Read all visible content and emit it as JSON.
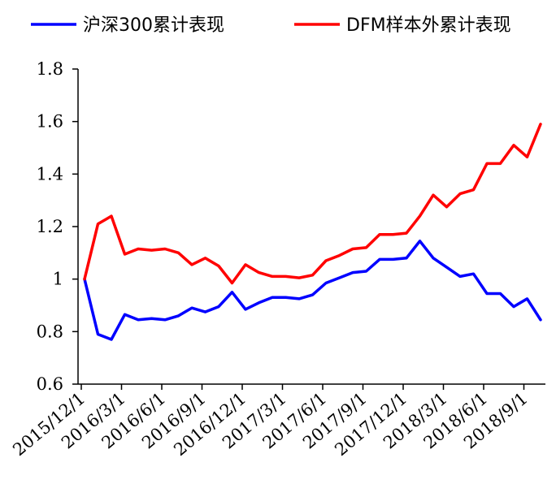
{
  "chart_data": {
    "type": "line",
    "x": [
      "2015/12/1",
      "2016/1/1",
      "2016/2/1",
      "2016/3/1",
      "2016/4/1",
      "2016/5/1",
      "2016/6/1",
      "2016/7/1",
      "2016/8/1",
      "2016/9/1",
      "2016/10/1",
      "2016/11/1",
      "2016/12/1",
      "2017/1/1",
      "2017/2/1",
      "2017/3/1",
      "2017/4/1",
      "2017/5/1",
      "2017/6/1",
      "2017/7/1",
      "2017/8/1",
      "2017/9/1",
      "2017/10/1",
      "2017/11/1",
      "2017/12/1",
      "2018/1/1",
      "2018/2/1",
      "2018/3/1",
      "2018/4/1",
      "2018/5/1",
      "2018/6/1",
      "2018/7/1",
      "2018/8/1",
      "2018/9/1",
      "2018/10/1"
    ],
    "x_tick_labels": [
      "2015/12/1",
      "2016/3/1",
      "2016/6/1",
      "2016/9/1",
      "2016/12/1",
      "2017/3/1",
      "2017/6/1",
      "2017/9/1",
      "2017/12/1",
      "2018/3/1",
      "2018/6/1",
      "2018/9/1"
    ],
    "series": [
      {
        "name": "沪深300累计表现",
        "color": "#0000ff",
        "values": [
          1.0,
          0.79,
          0.77,
          0.865,
          0.845,
          0.85,
          0.845,
          0.86,
          0.89,
          0.875,
          0.895,
          0.95,
          0.885,
          0.91,
          0.93,
          0.93,
          0.925,
          0.94,
          0.985,
          1.005,
          1.025,
          1.03,
          1.075,
          1.075,
          1.08,
          1.145,
          1.08,
          1.045,
          1.01,
          1.02,
          0.945,
          0.945,
          0.895,
          0.925,
          0.845
        ]
      },
      {
        "name": "DFM样本外累计表现",
        "color": "#ff0000",
        "values": [
          1.0,
          1.21,
          1.24,
          1.095,
          1.115,
          1.11,
          1.115,
          1.1,
          1.055,
          1.08,
          1.05,
          0.985,
          1.055,
          1.025,
          1.01,
          1.01,
          1.005,
          1.015,
          1.07,
          1.09,
          1.115,
          1.12,
          1.17,
          1.17,
          1.175,
          1.24,
          1.32,
          1.275,
          1.325,
          1.34,
          1.44,
          1.44,
          1.51,
          1.465,
          1.59
        ]
      }
    ],
    "y_ticks": [
      "0.6",
      "0.8",
      "1",
      "1.2",
      "1.4",
      "1.6",
      "1.8"
    ],
    "ylim": [
      0.6,
      1.8
    ],
    "legend_position": "top",
    "grid": false
  }
}
